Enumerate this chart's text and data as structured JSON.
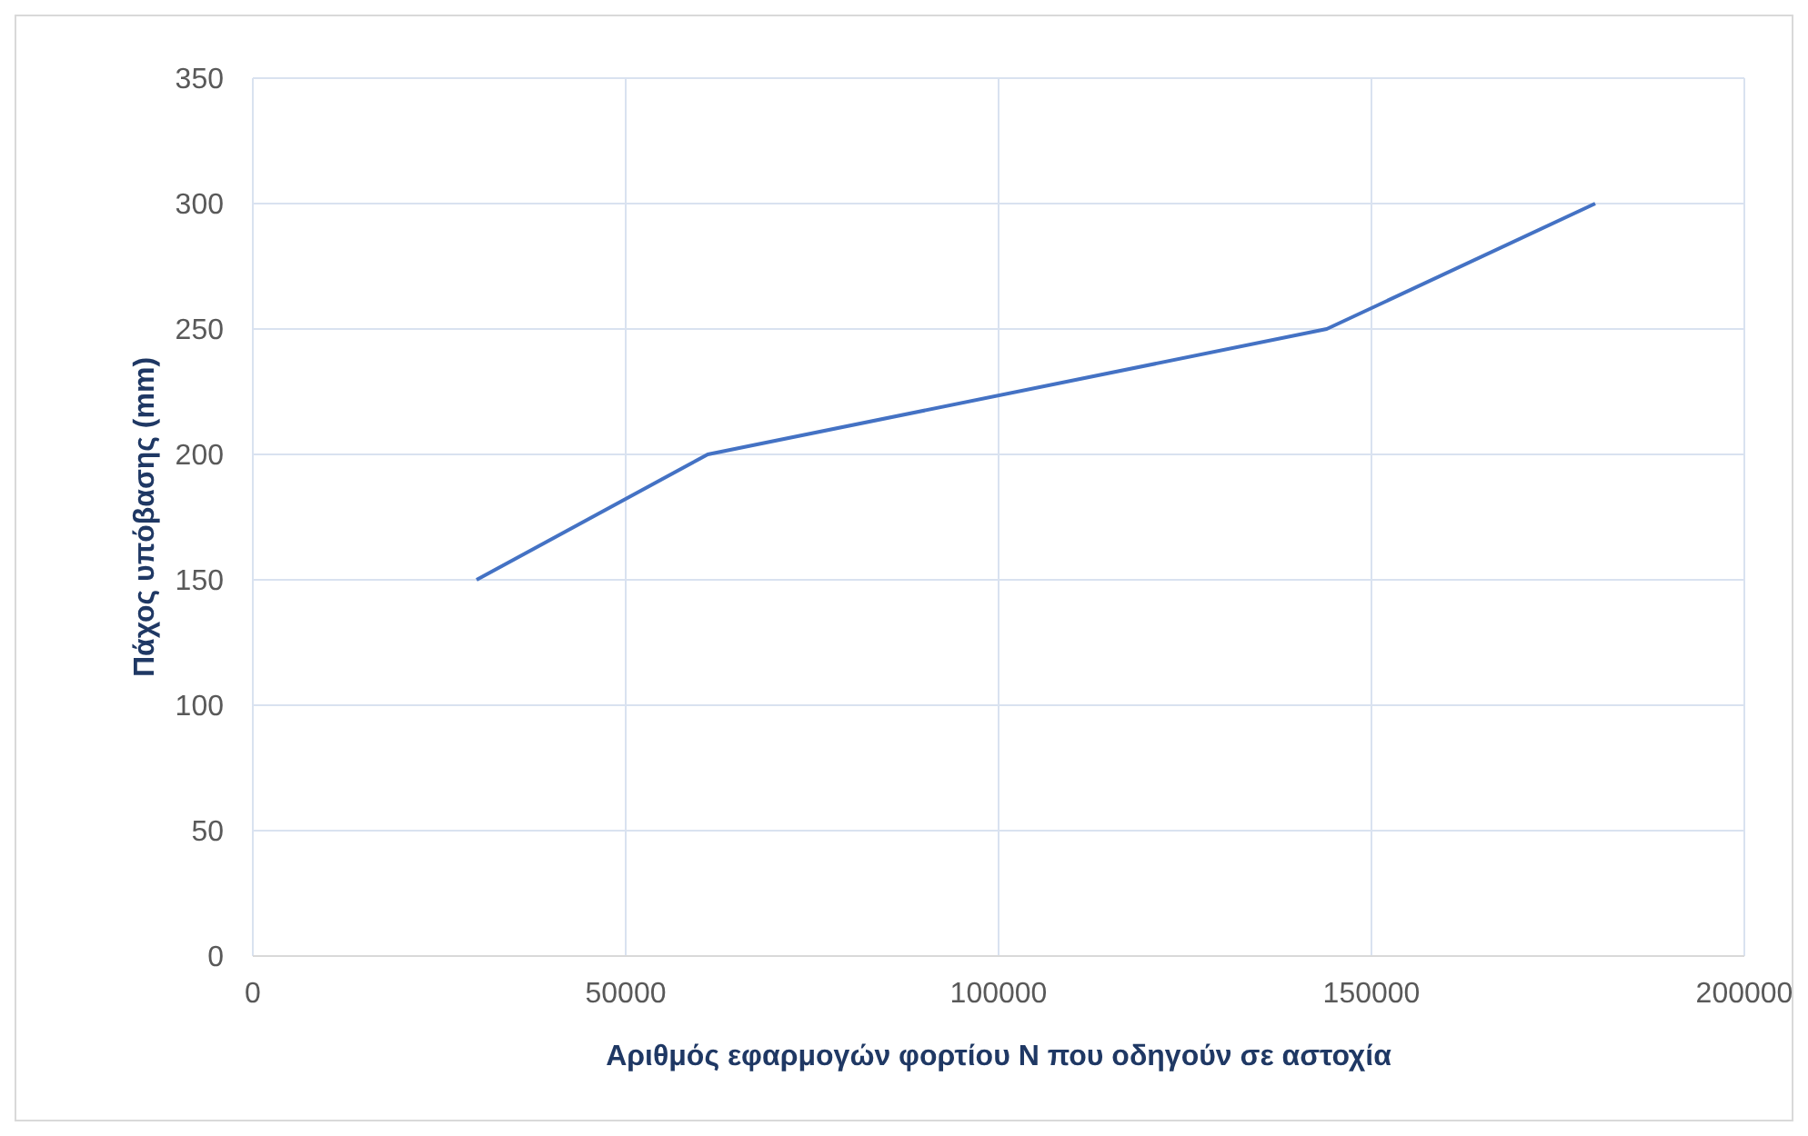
{
  "chart_data": {
    "type": "line",
    "xlabel": "Αριθμός εφαρμογών φορτίου N που οδηγούν σε αστοχία",
    "ylabel": "Πάχος υπόβασης (mm)",
    "x": [
      30000,
      61000,
      144000,
      180000
    ],
    "series": [
      {
        "color": "#4472c4",
        "values": [
          150,
          200,
          250,
          300
        ]
      }
    ],
    "xlim": [
      0,
      200000
    ],
    "xticks": [
      0,
      50000,
      100000,
      150000,
      200000
    ],
    "ylim": [
      0,
      350
    ],
    "yticks": [
      0,
      50,
      100,
      150,
      200,
      250,
      300,
      350
    ],
    "grid": true,
    "marker": "none",
    "line_style": "solid"
  }
}
